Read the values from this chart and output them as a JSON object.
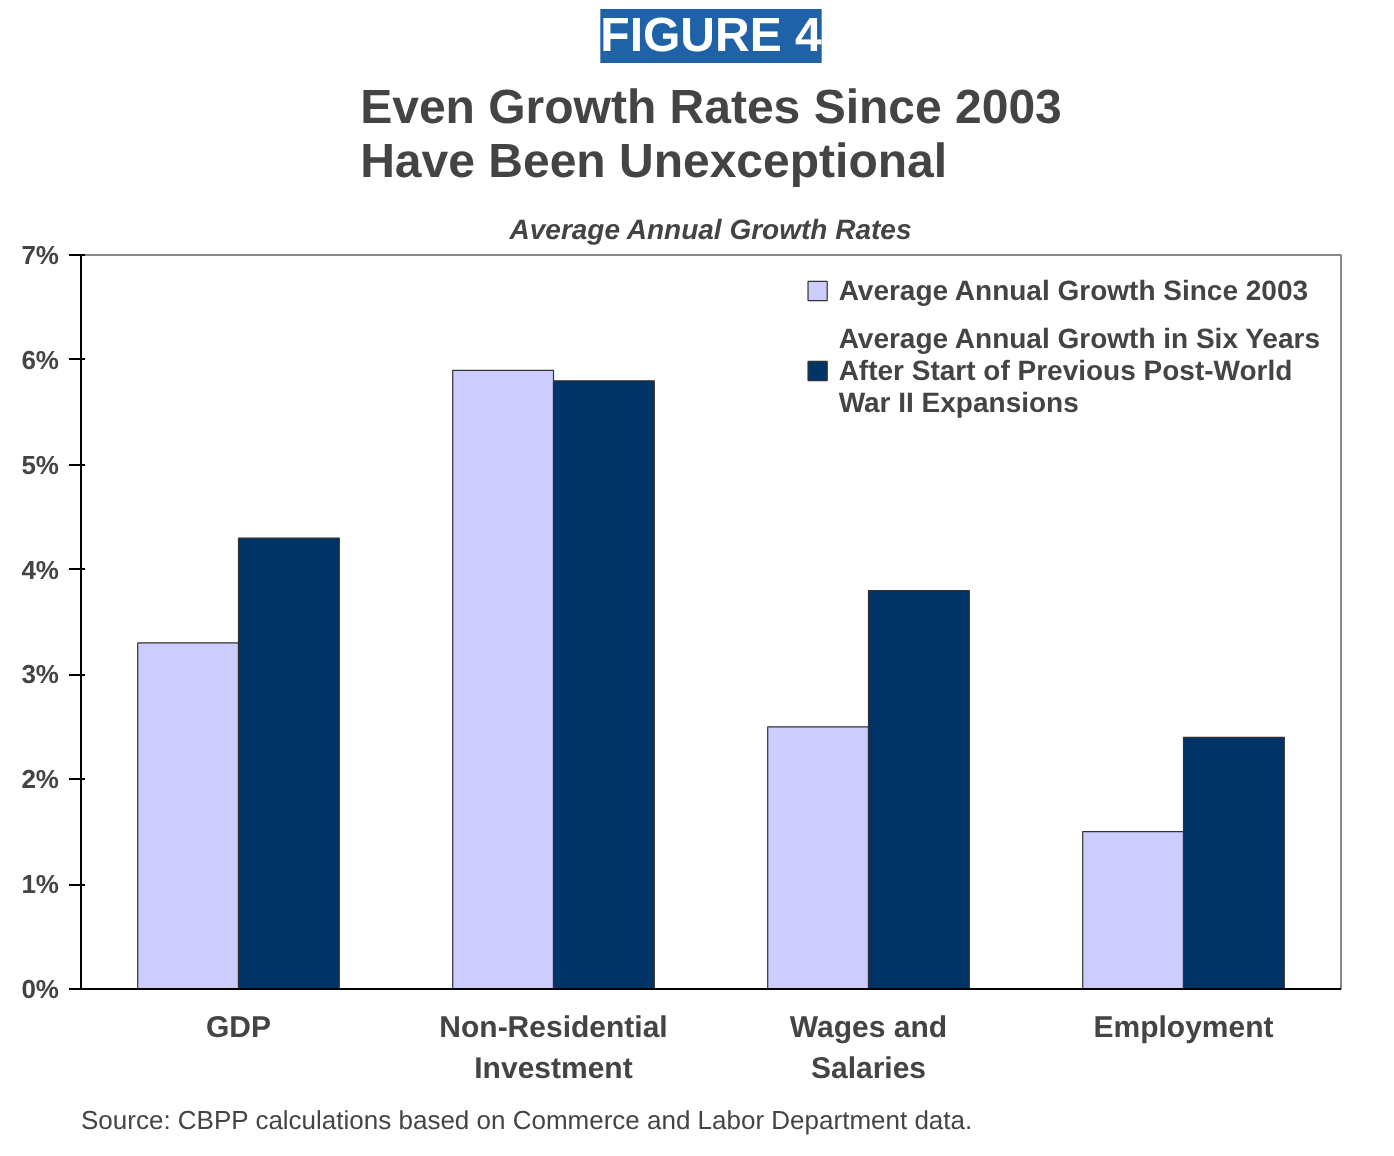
{
  "chart_data": {
    "type": "bar",
    "title": "Even Growth Rates Since 2003\nHave Been Unexceptional",
    "subtitle": "Average Annual Growth Rates",
    "categories": [
      "GDP",
      "Non-Residential Investment",
      "Wages and Salaries",
      "Employment"
    ],
    "series": [
      {
        "name": "Average Annual Growth Since 2003",
        "color": "#ccccff",
        "values": [
          3.3,
          5.9,
          2.5,
          1.5
        ]
      },
      {
        "name": "Average Annual Growth in Six Years After Start of Previous Post-World War II Expansions",
        "color": "#003366",
        "values": [
          4.3,
          5.8,
          3.8,
          2.4
        ]
      }
    ],
    "ylim": [
      0,
      7
    ],
    "yticks": [
      {
        "value": 0,
        "label": "0%"
      },
      {
        "value": 1,
        "label": "1%"
      },
      {
        "value": 2,
        "label": "2%"
      },
      {
        "value": 3,
        "label": "3%"
      },
      {
        "value": 4,
        "label": "4%"
      },
      {
        "value": 5,
        "label": "5%"
      },
      {
        "value": 6,
        "label": "6%"
      },
      {
        "value": 7,
        "label": "7%"
      }
    ],
    "grid": false,
    "legend": "top right",
    "annotations": [
      "FIGURE 4",
      "Source:  CBPP calculations based on Commerce and Labor Department data."
    ]
  }
}
